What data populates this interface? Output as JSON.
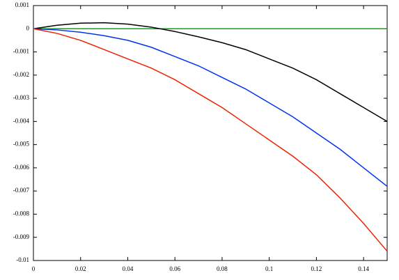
{
  "chart_data": {
    "type": "line",
    "x": [
      0,
      0.01,
      0.02,
      0.03,
      0.04,
      0.05,
      0.06,
      0.07,
      0.08,
      0.09,
      0.1,
      0.11,
      0.12,
      0.13,
      0.14,
      0.15
    ],
    "series": [
      {
        "color": "#00b000",
        "values": [
          0,
          0,
          0,
          0,
          0,
          0,
          0,
          0,
          0,
          0,
          0,
          0,
          0,
          0,
          0,
          0
        ]
      },
      {
        "color": "#000000",
        "values": [
          0,
          0.00015,
          0.00024,
          0.00026,
          0.0002,
          7e-05,
          -0.00012,
          -0.00035,
          -0.0006,
          -0.0009,
          -0.0013,
          -0.0017,
          -0.0022,
          -0.0028,
          -0.0034,
          -0.004
        ]
      },
      {
        "color": "#0033ee",
        "values": [
          0,
          -5e-05,
          -0.00015,
          -0.0003,
          -0.0005,
          -0.0008,
          -0.0012,
          -0.0016,
          -0.0021,
          -0.0026,
          -0.0032,
          -0.0038,
          -0.0045,
          -0.0052,
          -0.006,
          -0.0068
        ]
      },
      {
        "color": "#ee2200",
        "values": [
          0,
          -0.0002,
          -0.0005,
          -0.0009,
          -0.0013,
          -0.0017,
          -0.0022,
          -0.0028,
          -0.0034,
          -0.0041,
          -0.0048,
          -0.0055,
          -0.0063,
          -0.0073,
          -0.0084,
          -0.0096
        ]
      }
    ],
    "xlim": [
      0,
      0.15
    ],
    "xticks": [
      0,
      0.02,
      0.04,
      0.06,
      0.08,
      0.1,
      0.12,
      0.14
    ],
    "ylim": [
      -0.01,
      0.001
    ],
    "yticks": [
      0.001,
      0,
      -0.001,
      -0.002,
      -0.003,
      -0.004,
      -0.005,
      -0.006,
      -0.007,
      -0.008,
      -0.009,
      -0.01
    ],
    "grid": false
  }
}
